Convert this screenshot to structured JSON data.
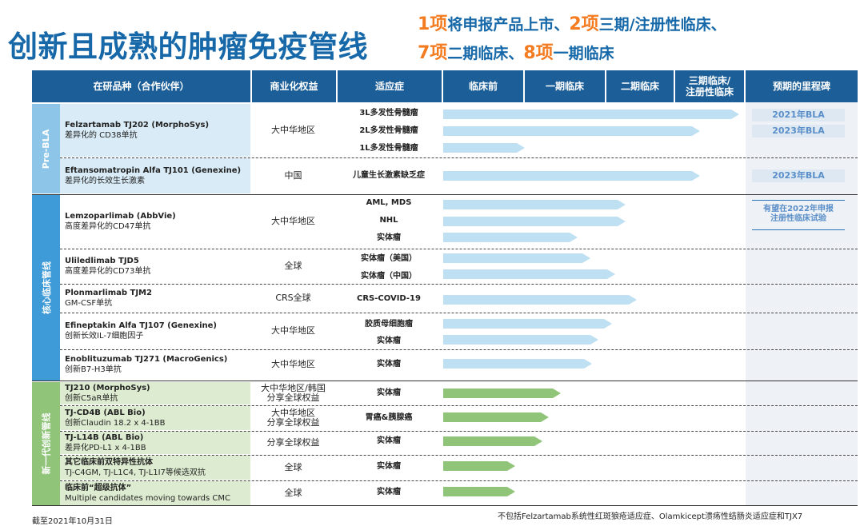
{
  "title": "创新且成熟的肿瘤免疫管线",
  "subtitle": {
    "line1": [
      {
        "n": "1项",
        "t": "将申报产品上市、"
      },
      {
        "n": "2项",
        "t": "三期/注册性临床、"
      }
    ],
    "line2": [
      {
        "n": "7项",
        "t": "二期临床、"
      },
      {
        "n": "8项",
        "t": "一期临床"
      }
    ]
  },
  "headers": {
    "candidate": "在研品种（合作伙伴）",
    "rights": "商业化权益",
    "indication": "适应症",
    "preclinical": "临床前",
    "phase1": "一期临床",
    "phase2": "二期临床",
    "phase3": "三期临床/\n注册性临床",
    "milestone": "预期的里程碑"
  },
  "sections": {
    "pre_bla": "Pre-BLA",
    "core": "核心临床管线",
    "next_gen": "新一代创新管线"
  },
  "rows": [
    {
      "name": "Felzartamab TJ202 (MorphoSys)",
      "desc": "差异化的 CD38单抗",
      "rights": "大中华地区"
    },
    {
      "name": "Eftansomatropin Alfa TJ101 (Genexine)",
      "desc": "差异化的长效生长激素",
      "rights": "中国"
    },
    {
      "name": "Lemzoparlimab (AbbVie)",
      "desc": "高度差异化的CD47单抗",
      "rights": "大中华地区"
    },
    {
      "name": "Uliledlimab TJD5",
      "desc": "高度差异化的CD73单抗",
      "rights": "全球"
    },
    {
      "name": "Plonmarlimab TJM2",
      "desc": "GM-CSF单抗",
      "rights": "CRS全球"
    },
    {
      "name": "Efineptakin Alfa TJ107 (Genexine)",
      "desc": "创新长效IL-7细胞因子",
      "rights": "大中华地区"
    },
    {
      "name": "Enoblituzumab TJ271 (MacroGenics)",
      "desc": "创新B7-H3单抗",
      "rights": "大中华地区"
    },
    {
      "name": "TJ210 (MorphoSys)",
      "desc": "创新C5aR单抗",
      "rights": "大中华地区/韩国\n分享全球权益"
    },
    {
      "name": "TJ-CD4B (ABL Bio)",
      "desc": "创新Claudin 18.2 x 4-1BB",
      "rights": "大中华地区\n分享全球权益"
    },
    {
      "name": "TJ-L14B (ABL Bio)",
      "desc": "差异化PD-L1 x 4-1BB",
      "rights": "分享全球权益"
    },
    {
      "name": "其它临床前双特异性抗体",
      "desc": "TJ-C4GM, TJ-L1C4, TJ-L1I7等候选双抗",
      "rights": "全球"
    },
    {
      "name": "临床前“超级抗体”",
      "desc": "Multiple candidates moving towards CMC",
      "rights": "全球"
    }
  ],
  "indications": [
    "3L多发性骨髓瘤",
    "2L多发性骨髓瘤",
    "1L多发性骨髓瘤",
    "儿童生长激素缺乏症",
    "AML, MDS",
    "NHL",
    "实体瘤",
    "实体瘤（美国）",
    "实体瘤（中国）",
    "CRS-COVID-19",
    "胶质母细胞瘤",
    "实体瘤",
    "实体瘤",
    "实体瘤",
    "胃癌&胰腺癌",
    "实体瘤",
    "实体瘤",
    "实体瘤"
  ],
  "progress": [
    0.715,
    0.619,
    0.197,
    0.619,
    0.44,
    0.44,
    0.324,
    0.356,
    0.416,
    0.467,
    0.408,
    0.374,
    0.36,
    0.284,
    0.254,
    0.24,
    0.173,
    0.173
  ],
  "milestones": {
    "m1": "2021年BLA",
    "m2": "2023年BLA",
    "m3": "2023年BLA",
    "m4": "有望在2022年申报\n注册性临床试验"
  },
  "footer": {
    "date": "截至2021年10月31日",
    "note": "不包括Felzartamab系统性红斑狼疮适应症、Olamkicept溃疡性结肠炎适应症和TJX7"
  },
  "colors": {
    "header": "#1c5f98",
    "title": "#1668a8",
    "accent_number": "#f47b20",
    "blue_arrow": "#bfe0f3",
    "green_arrow": "#8fc479",
    "pre_bla_side": "#8dc5e8",
    "core_side": "#3f9bd8",
    "next_gen_side": "#8fc479",
    "pre_bla_name_bg": "#d8ebf6",
    "next_gen_name_bg": "#ddecd0"
  }
}
